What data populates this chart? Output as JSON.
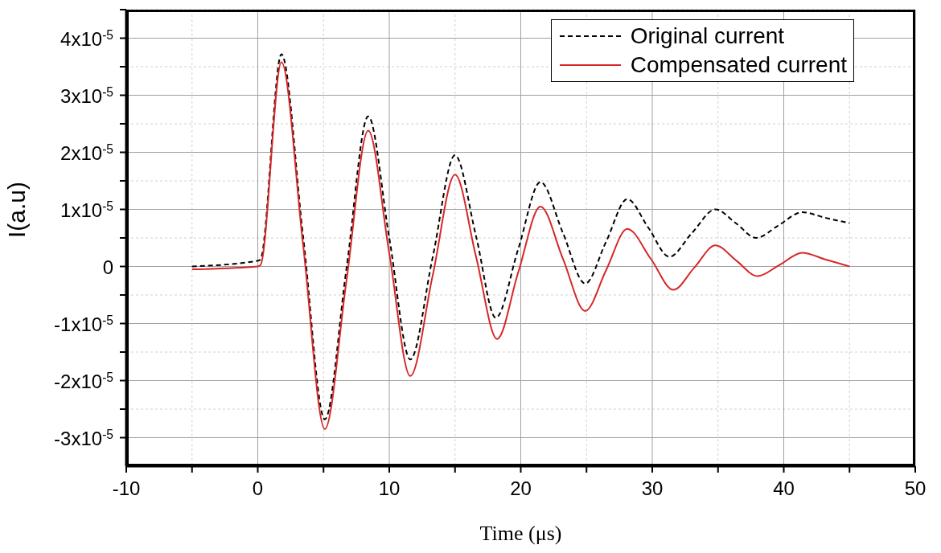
{
  "chart_data": {
    "type": "line",
    "xlabel": "Time (μs)",
    "ylabel": "I(a.u)",
    "xlim": [
      -10,
      50
    ],
    "xticks": [
      -10,
      {
        "value": -5,
        "label": null
      },
      0,
      {
        "value": 5,
        "label": null
      },
      10,
      {
        "value": 15,
        "label": null
      },
      20,
      {
        "value": 25,
        "label": null
      },
      30,
      {
        "value": 35,
        "label": null
      },
      40,
      {
        "value": 45,
        "label": null
      },
      50
    ],
    "ylim": [
      -3.5e-05,
      4.5e-05
    ],
    "yticks": [
      {
        "value": -3e-05,
        "label": "-3x10$^{-5}$"
      },
      {
        "value": -2.5e-05,
        "label": null
      },
      {
        "value": -2e-05,
        "label": "-2x10$^{-5}$"
      },
      {
        "value": -1.5e-05,
        "label": null
      },
      {
        "value": -1e-05,
        "label": "-1x10$^{-5}$"
      },
      {
        "value": -5e-06,
        "label": null
      },
      0,
      {
        "value": 5e-06,
        "label": null
      },
      {
        "value": 1e-05,
        "label": "1x10$^{-5}$"
      },
      {
        "value": 1.5e-05,
        "label": null
      },
      {
        "value": 2e-05,
        "label": "2x10$^{-5}$"
      },
      {
        "value": 2.5e-05,
        "label": null
      },
      {
        "value": 3e-05,
        "label": "3x10$^{-5}$"
      },
      {
        "value": 3.5e-05,
        "label": null
      },
      {
        "value": 4e-05,
        "label": "4x10$^{-5}$"
      },
      {
        "value": 4.5e-05,
        "label": null
      }
    ],
    "grid": true,
    "legend": "top right",
    "marker": "none",
    "series": [
      {
        "name": "Original current",
        "color": "#000000",
        "line_style": "dashed",
        "x": [
          -5,
          0,
          0.2,
          1.8,
          3.45,
          5.1,
          6.75,
          8.4,
          10.0,
          11.6,
          13.3,
          15.0,
          16.6,
          18.1,
          19.8,
          21.5,
          23.2,
          24.9,
          26.5,
          28.1,
          29.7,
          31.3,
          33.0,
          34.8,
          36.4,
          37.9,
          39.6,
          41.4,
          43.2,
          45
        ],
        "values": [
          0,
          1e-06,
          1.2e-06,
          3.72e-05,
          5.2e-06,
          -2.68e-05,
          -3e-07,
          2.63e-05,
          5e-06,
          -1.63e-05,
          1.6e-06,
          1.95e-05,
          5.3e-06,
          -9e-06,
          3e-06,
          1.48e-05,
          5.9e-06,
          -3e-06,
          4.4e-06,
          1.18e-05,
          6.8e-06,
          1.7e-06,
          5.8e-06,
          1e-05,
          7.5e-06,
          5e-06,
          7.2e-06,
          9.5e-06,
          8.5e-06,
          7.6e-06
        ]
      },
      {
        "name": "Compensated current",
        "color": "#d62728",
        "line_style": "solid",
        "x": [
          -5,
          0,
          0.2,
          1.8,
          3.45,
          5.1,
          6.75,
          8.4,
          10.0,
          11.6,
          13.3,
          15.0,
          16.6,
          18.2,
          19.8,
          21.5,
          23.2,
          24.9,
          26.5,
          28.1,
          29.9,
          31.6,
          33.2,
          34.8,
          36.4,
          38.0,
          39.7,
          41.4,
          43.2,
          45
        ],
        "values": [
          -5e-07,
          0,
          2e-07,
          3.58e-05,
          3.7e-06,
          -2.85e-05,
          -2.4e-06,
          2.38e-05,
          2.3e-06,
          -1.92e-05,
          -1.6e-06,
          1.61e-05,
          1.7e-06,
          -1.27e-05,
          -1.1e-06,
          1.05e-05,
          1.4e-06,
          -7.8e-06,
          -6e-07,
          6.6e-06,
          1.3e-06,
          -4.1e-06,
          -2e-07,
          3.7e-06,
          1e-06,
          -1.7e-06,
          3e-07,
          2.4e-06,
          1.2e-06,
          0
        ]
      }
    ]
  }
}
